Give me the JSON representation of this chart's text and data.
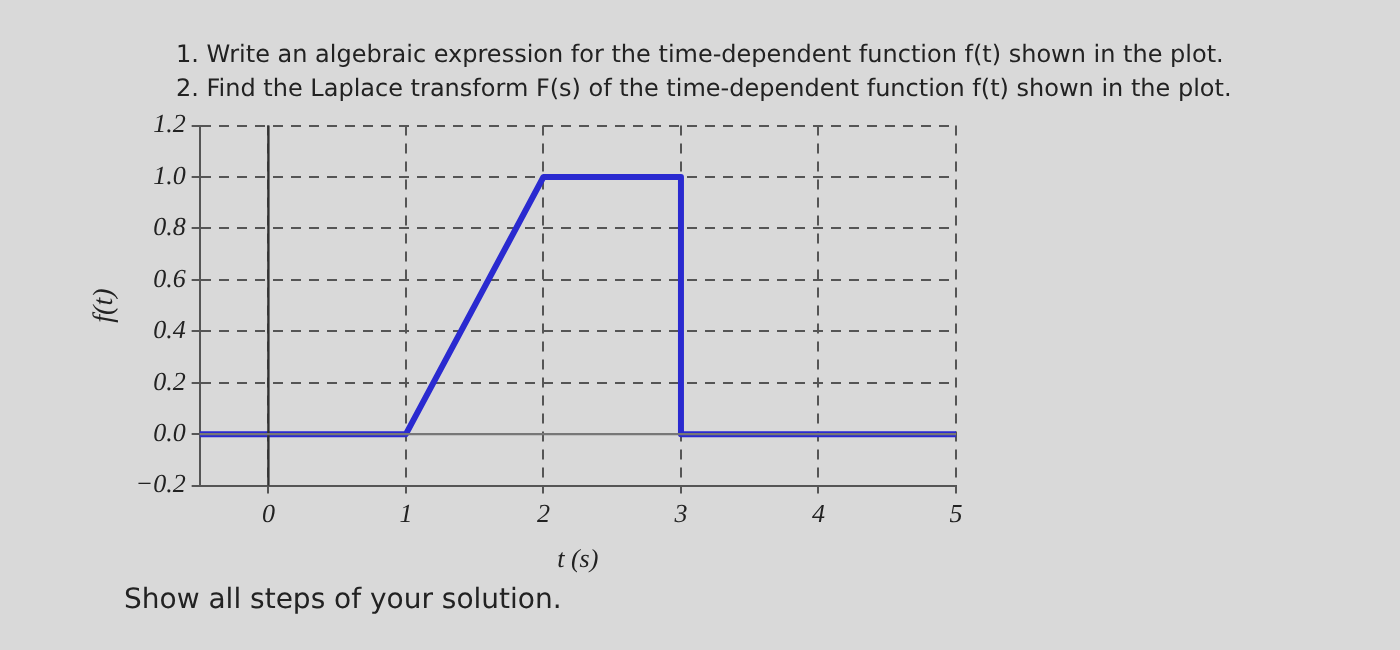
{
  "chart_data": {
    "type": "line",
    "title": "1. Write an algebraic expression for the time-dependent function f(t) shown in the plot.",
    "subtitle": "2. Find the Laplace transform F(s) of the time-dependent function f(t) shown in the plot.",
    "xlabel": "t (s)",
    "ylabel": "f(t)",
    "annotations": [
      "Show all steps of your solution."
    ],
    "series": [
      {
        "color": "#2a2ad0",
        "x": [
          -0.5,
          1,
          2,
          3,
          3,
          5
        ],
        "values": [
          0,
          0,
          1,
          1,
          0,
          0
        ]
      }
    ],
    "xlim": [
      -0.5,
      5
    ],
    "xticks": [
      0,
      1,
      2,
      3,
      4,
      5
    ],
    "ylim": [
      -0.2,
      1.2
    ],
    "yticks": [
      {
        "value": -0.2,
        "label": "−0.2"
      },
      {
        "value": 0,
        "label": "0.0"
      },
      {
        "value": 0.2,
        "label": "0.2"
      },
      {
        "value": 0.4,
        "label": "0.4"
      },
      {
        "value": 0.6,
        "label": "0.6"
      },
      {
        "value": 0.8,
        "label": "0.8"
      },
      {
        "value": 1,
        "label": "1.0"
      },
      {
        "value": 1.2,
        "label": "1.2"
      }
    ],
    "ref_lines": [
      {
        "axis": "x",
        "value": 0,
        "color": "#333333"
      },
      {
        "axis": "y",
        "value": 0,
        "color": "#777777"
      }
    ],
    "grid": true,
    "legend": false,
    "marker": "none",
    "line_style": "solid"
  }
}
